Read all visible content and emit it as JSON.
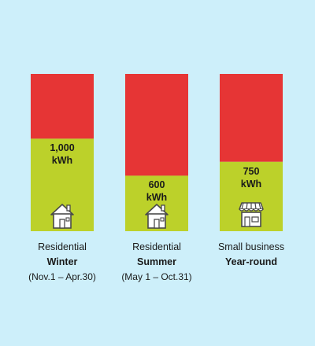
{
  "colors": {
    "background": "#cdeffa",
    "limit": "#e63535",
    "usage": "#bcd12a",
    "icon_fill": "#ffffff",
    "icon_stroke": "#4a4a4a"
  },
  "chart_data": {
    "type": "bar",
    "stacked": true,
    "title": "",
    "xlabel": "",
    "ylabel": "",
    "categories": [
      {
        "line1": "Residential",
        "line2": "Winter",
        "line3": "(Nov.1 – Apr.30)",
        "icon": "house-icon"
      },
      {
        "line1": "Residential",
        "line2": "Summer",
        "line3": "(May 1 – Oct.31)",
        "icon": "house-icon"
      },
      {
        "line1": "Small business",
        "line2": "Year-round",
        "line3": "",
        "icon": "store-icon"
      }
    ],
    "values": [
      1000,
      600,
      750
    ],
    "value_labels": [
      {
        "amount": "1,000",
        "unit": "kWh"
      },
      {
        "amount": "600",
        "unit": "kWh"
      },
      {
        "amount": "750",
        "unit": "kWh"
      }
    ]
  }
}
